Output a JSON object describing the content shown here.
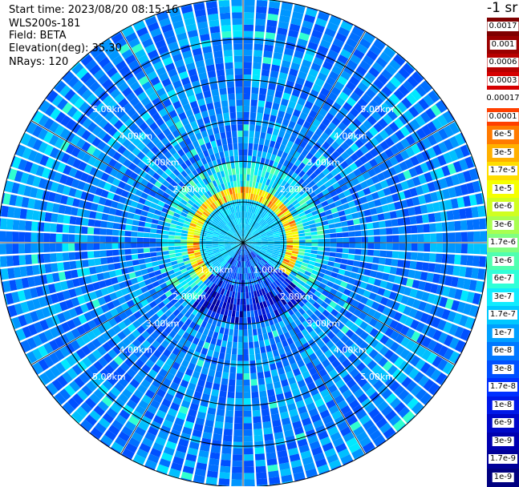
{
  "header": {
    "start_time": "Start time: 2023/08/20 08:15:16",
    "instrument": "WLS200s-181",
    "field": "Field: BETA",
    "elevation": "Elevation(deg): 35.30",
    "nrays": "NRays: 120"
  },
  "colorbar": {
    "unit_label": "-1 sr",
    "labels": [
      "0.0017",
      "0.001",
      "0.0006",
      "0.0003",
      "0.00017",
      "0.0001",
      "6e-5",
      "3e-5",
      "1.7e-5",
      "1e-5",
      "6e-6",
      "3e-6",
      "1.7e-6",
      "1e-6",
      "6e-7",
      "3e-7",
      "1.7e-7",
      "1e-7",
      "6e-8",
      "3e-8",
      "1.7e-8",
      "1e-8",
      "6e-9",
      "3e-9",
      "1.7e-9",
      "1e-9"
    ]
  },
  "map": {
    "n_rays": 120,
    "elevation_deg": 35.3,
    "range_rings_km": [
      1,
      2,
      3,
      4,
      5,
      6
    ],
    "ring_labels": [
      "1.00km",
      "2.00km",
      "3.00km",
      "4.00km",
      "5.00km"
    ],
    "max_range_km": 6,
    "inner_ring_labels": [
      "1.00km",
      "1.00km"
    ],
    "colormap": [
      "#7f0000",
      "#b20000",
      "#e10000",
      "#ff2000",
      "#ff6000",
      "#ff9a00",
      "#ffc800",
      "#ffee00",
      "#eeff00",
      "#c8ff30",
      "#90ff70",
      "#60ffa0",
      "#30ffd0",
      "#00e8ff",
      "#00c0ff",
      "#0096ff",
      "#0070ff",
      "#0050ff",
      "#0030f0",
      "#0010d0",
      "#0000b0",
      "#000090"
    ]
  }
}
